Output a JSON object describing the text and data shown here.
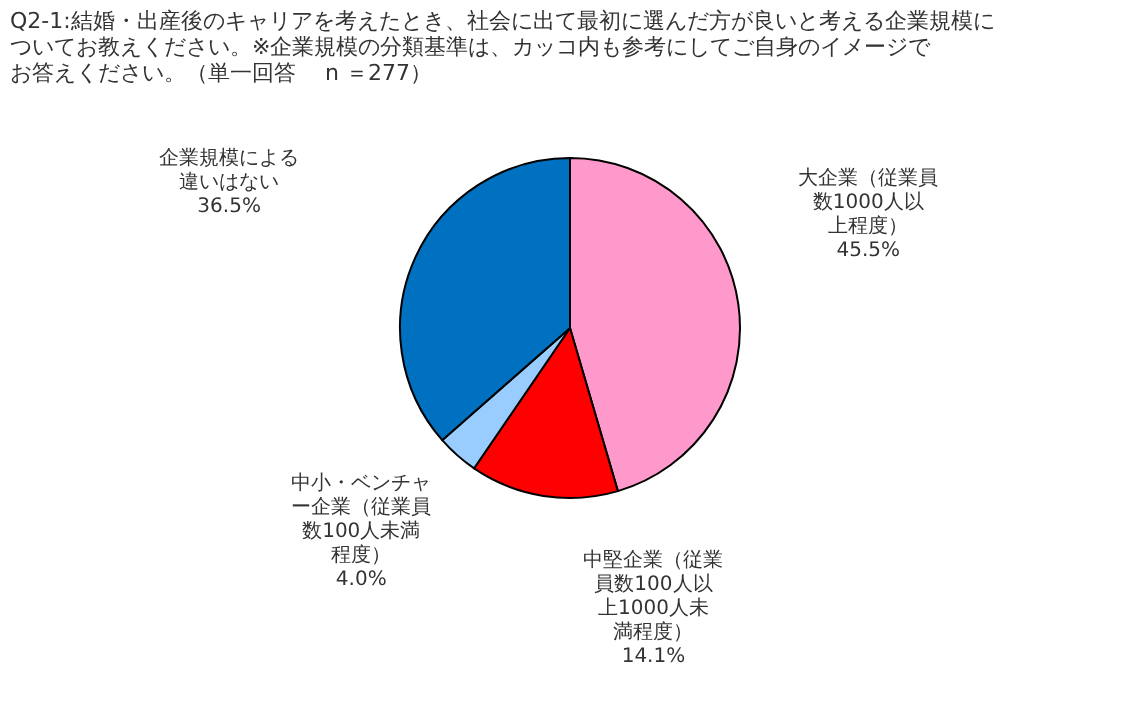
{
  "chart_data": {
    "type": "pie",
    "title": [
      "Q2-1:結婚・出産後のキャリアを考えたとき、社会に出て最初に選んだ方が良いと考える企業規模に",
      "ついてお教えください。※企業規模の分類基準は、カッコ内も参考にしてご自身のイメージで",
      "お答えください。（単一回答　 n ＝277）"
    ],
    "categories": [
      "大企業（従業員数1000人以上程度）",
      "中堅企業（従業員数100人以上1000人未満程度）",
      "中小・ベンチャー企業（従業員数100人未満程度）",
      "企業規模による違いはない"
    ],
    "values": [
      45.5,
      14.1,
      4.0,
      36.5
    ],
    "value_labels": [
      "45.5%",
      "14.1%",
      "4.0%",
      "36.5%"
    ],
    "colors": [
      "#ff99cc",
      "#ff0000",
      "#99ccff",
      "#0070c0"
    ],
    "legend": false
  }
}
